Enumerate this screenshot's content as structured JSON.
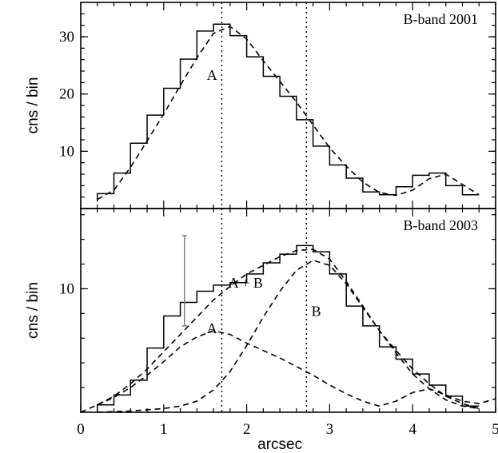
{
  "chart_data": {
    "type": "line",
    "xlabel": "arcsec",
    "xlim": [
      0,
      5
    ],
    "x_ticks": [
      "0",
      "1",
      "2",
      "3",
      "4",
      "5"
    ],
    "shared_x": true,
    "vertical_lines": [
      1.7,
      2.72
    ],
    "panels": [
      {
        "title": "B-band 2001",
        "ylabel": "cns / bin",
        "ylim": [
          0,
          36
        ],
        "y_ticks": [
          10,
          20,
          30
        ],
        "series": [
          {
            "kind": "step",
            "edges": [
              0.2,
              0.4,
              0.6,
              0.8,
              1.0,
              1.2,
              1.4,
              1.6,
              1.8,
              2.0,
              2.2,
              2.4,
              2.6,
              2.8,
              3.0,
              3.2,
              3.4,
              3.6,
              3.8,
              4.0,
              4.2,
              4.4,
              4.6,
              4.8
            ],
            "values": [
              2.6,
              6.2,
              11.4,
              16.3,
              21.0,
              26.1,
              31.0,
              32.2,
              30.2,
              26.5,
              23.1,
              19.6,
              15.5,
              10.9,
              7.6,
              5.3,
              2.9,
              2.4,
              3.8,
              5.8,
              6.2,
              4.0,
              2.4
            ]
          },
          {
            "kind": "model",
            "x": [
              0.2,
              0.4,
              0.6,
              0.8,
              1.0,
              1.2,
              1.4,
              1.6,
              1.8,
              2.0,
              2.2,
              2.4,
              2.6,
              2.8,
              3.0,
              3.2,
              3.4,
              3.6,
              3.8,
              4.0,
              4.2,
              4.4,
              4.6,
              4.8
            ],
            "y": [
              1.6,
              3.2,
              7.2,
              11.8,
              16.5,
              21.5,
              26.3,
              30.6,
              31.8,
              29.6,
              25.8,
              22.2,
              18.6,
              14.6,
              10.6,
              7.4,
              4.6,
              2.8,
              2.3,
              3.2,
              5.2,
              6.0,
              4.2,
              2.4
            ]
          }
        ],
        "annotations": [
          {
            "text": "A",
            "x": 1.52,
            "y": 22.5
          }
        ]
      },
      {
        "title": "B-band 2003",
        "ylabel": "cns / bin",
        "ylim": [
          0,
          16.5
        ],
        "y_ticks": [
          10
        ],
        "series": [
          {
            "kind": "step",
            "edges": [
              0.2,
              0.4,
              0.6,
              0.8,
              1.0,
              1.2,
              1.4,
              1.6,
              1.8,
              2.0,
              2.2,
              2.4,
              2.6,
              2.8,
              3.0,
              3.2,
              3.4,
              3.6,
              3.8,
              4.0,
              4.2,
              4.4,
              4.6,
              4.8
            ],
            "values": [
              0.6,
              1.4,
              2.6,
              5.2,
              7.8,
              8.9,
              9.8,
              10.3,
              10.5,
              11.2,
              12.1,
              12.8,
              13.5,
              13.0,
              11.2,
              8.6,
              7.0,
              5.3,
              4.3,
              3.1,
              2.2,
              1.3,
              0.5
            ]
          },
          {
            "kind": "model",
            "name": "A + B",
            "x": [
              0.0,
              0.2,
              0.4,
              0.6,
              0.8,
              1.0,
              1.2,
              1.4,
              1.6,
              1.8,
              2.0,
              2.2,
              2.4,
              2.6,
              2.8,
              3.0,
              3.2,
              3.4,
              3.6,
              3.8,
              4.0,
              4.2,
              4.4,
              4.6,
              4.8
            ],
            "y": [
              0.0,
              0.6,
              1.3,
              2.3,
              3.5,
              4.9,
              6.3,
              7.7,
              9.1,
              10.2,
              11.2,
              11.9,
              12.6,
              13.1,
              13.2,
              12.4,
              10.6,
              8.6,
              6.6,
              4.8,
              3.1,
              1.9,
              1.0,
              0.5,
              0.3
            ]
          },
          {
            "kind": "model",
            "name": "A",
            "x": [
              0.2,
              0.4,
              0.6,
              0.8,
              1.0,
              1.2,
              1.4,
              1.6,
              1.8,
              2.0,
              2.2,
              2.4,
              2.6,
              2.8,
              3.0,
              3.2,
              3.4,
              3.6,
              3.8,
              4.0,
              4.2,
              4.4,
              4.6,
              4.8,
              5.0
            ],
            "y": [
              0.6,
              1.2,
              2.0,
              3.0,
              4.1,
              5.3,
              6.1,
              6.6,
              6.3,
              5.6,
              5.0,
              4.4,
              3.7,
              3.0,
              2.2,
              1.5,
              0.9,
              0.5,
              0.9,
              1.6,
              1.9,
              1.4,
              0.9,
              0.7,
              1.1
            ]
          },
          {
            "kind": "model",
            "name": "B",
            "x": [
              0.2,
              0.6,
              1.0,
              1.2,
              1.4,
              1.6,
              1.8,
              2.0,
              2.2,
              2.4,
              2.6,
              2.8,
              3.0,
              3.2,
              3.4,
              3.6,
              3.8,
              4.0,
              4.2,
              4.4,
              4.6,
              4.8
            ],
            "y": [
              0.0,
              0.1,
              0.3,
              0.5,
              0.9,
              1.8,
              3.3,
              5.4,
              7.7,
              9.8,
              11.5,
              12.3,
              11.9,
              10.4,
              8.5,
              6.6,
              5.0,
              3.5,
              2.3,
              1.3,
              0.7,
              0.3
            ]
          }
        ],
        "error_bar": {
          "x": 1.25,
          "y_low": 7.0,
          "y_high": 14.3
        },
        "annotations": [
          {
            "text": "A + B",
            "x": 1.78,
            "y": 10.1
          },
          {
            "text": "B",
            "x": 2.78,
            "y": 7.8
          },
          {
            "text": "A",
            "x": 1.52,
            "y": 6.4
          }
        ]
      }
    ]
  }
}
